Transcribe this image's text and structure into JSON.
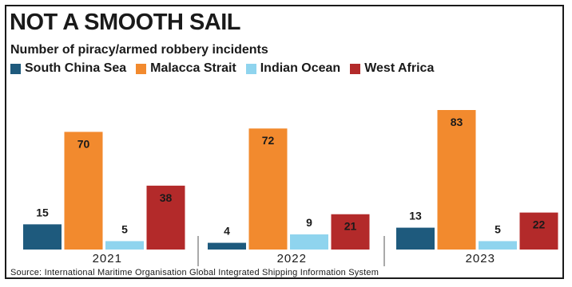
{
  "chart_data": {
    "type": "bar",
    "title": "NOT A SMOOTH SAIL",
    "subtitle": "Number of piracy/armed robbery incidents",
    "categories": [
      "2021",
      "2022",
      "2023"
    ],
    "series": [
      {
        "name": "South China Sea",
        "color": "#1e5a7d",
        "values": [
          15,
          4,
          13
        ]
      },
      {
        "name": "Malacca Strait",
        "color": "#f28a2e",
        "values": [
          70,
          72,
          83
        ]
      },
      {
        "name": "Indian Ocean",
        "color": "#8fd4ee",
        "values": [
          5,
          9,
          5
        ]
      },
      {
        "name": "West Africa",
        "color": "#b32a2a",
        "values": [
          38,
          21,
          22
        ]
      }
    ],
    "ylim": [
      0,
      83
    ],
    "grid": false,
    "legend": "top-left",
    "source": "Source: International Maritime Organisation Global Integrated Shipping Information System"
  }
}
